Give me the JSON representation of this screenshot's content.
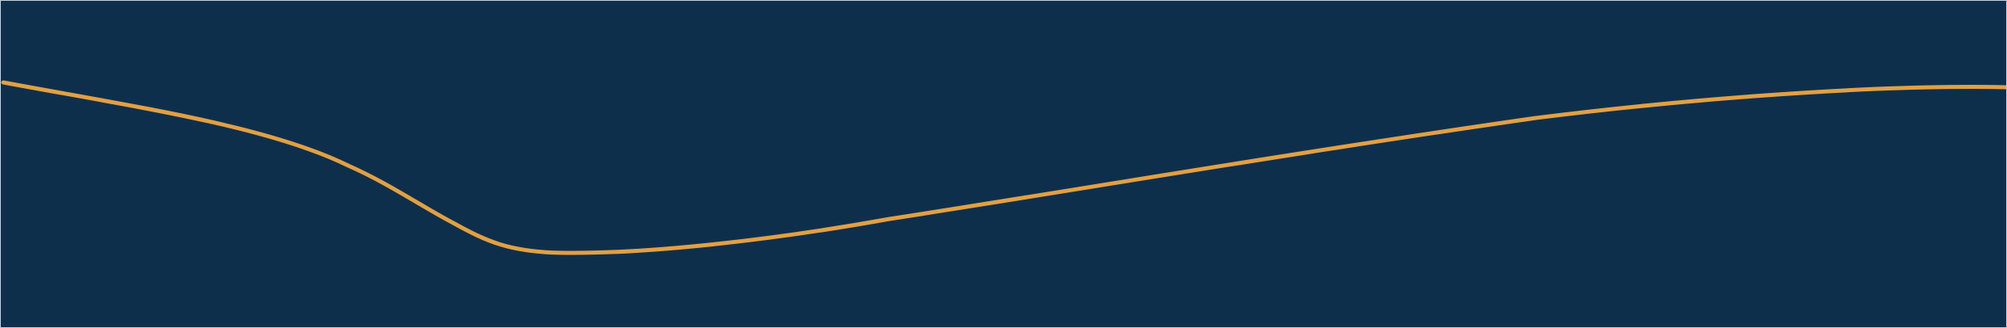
{
  "colors": {
    "background": "#0e2f4c",
    "curve": "#e2a043",
    "border": "#c9d3dc"
  },
  "decorations": {
    "curve_icon": "wave-line"
  }
}
